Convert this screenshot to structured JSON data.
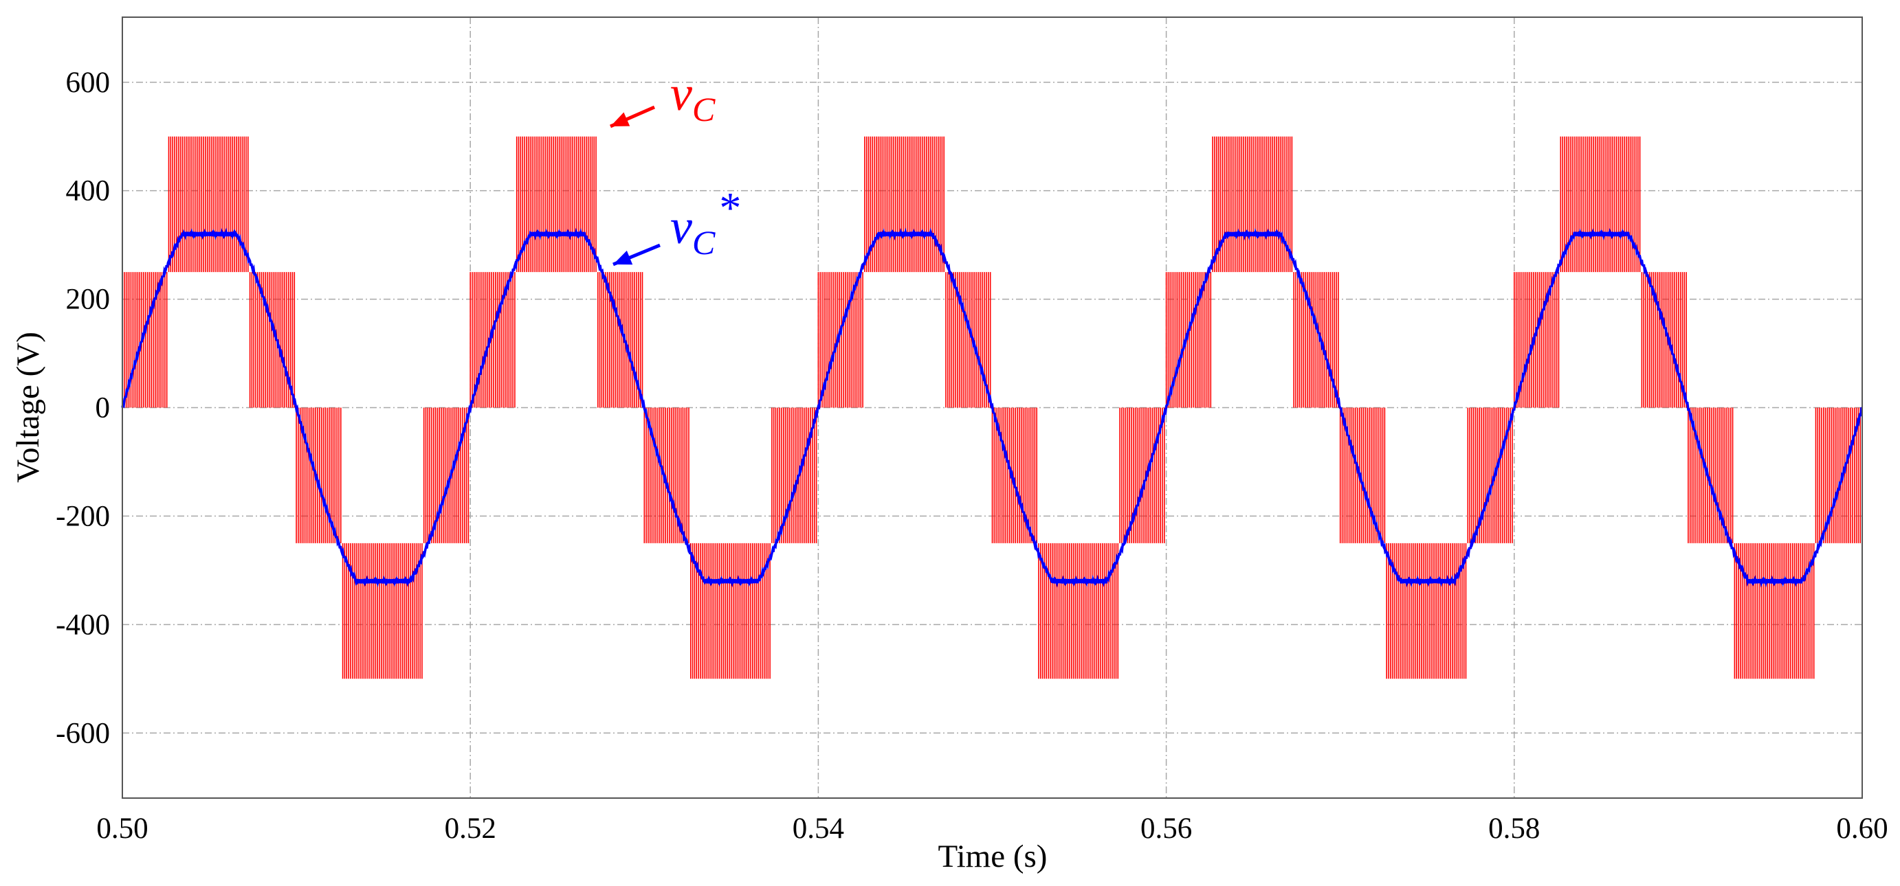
{
  "chart_data": {
    "type": "line",
    "title": "",
    "xlabel": "Time (s)",
    "ylabel": "Voltage (V)",
    "xlim": [
      0.5,
      0.6
    ],
    "ylim": [
      -720,
      720
    ],
    "xticks": [
      0.5,
      0.52,
      0.54,
      0.56,
      0.58,
      0.6
    ],
    "xtick_labels": [
      "0.50",
      "0.52",
      "0.54",
      "0.56",
      "0.58",
      "0.60"
    ],
    "yticks": [
      -600,
      -400,
      -200,
      0,
      200,
      400,
      600
    ],
    "ytick_labels": [
      "-600",
      "-400",
      "-200",
      "0",
      "200",
      "400",
      "600"
    ],
    "grid": true,
    "series": [
      {
        "name": "vC",
        "color": "#ff0000",
        "description": "five-level PWM output voltage",
        "fundamental_hz": 50,
        "level_step": 250,
        "levels": [
          -500,
          -250,
          0,
          250,
          500
        ],
        "amplitude": 320
      },
      {
        "name": "vC*",
        "color": "#0000ff",
        "description": "reference voltage (flat-topped sine)",
        "fundamental_hz": 50,
        "peak": 320
      }
    ],
    "annotations": [
      {
        "series": "vC",
        "base": "v",
        "sub": "C",
        "suffix": "",
        "color": "#ff0000"
      },
      {
        "series": "vC*",
        "base": "v",
        "sub": "C",
        "suffix": "*",
        "color": "#0000ff"
      }
    ]
  }
}
